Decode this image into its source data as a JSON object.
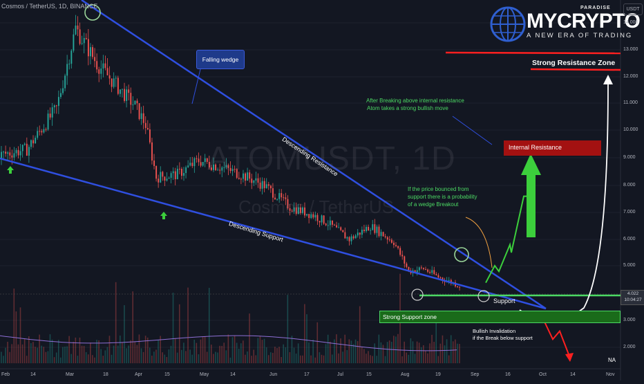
{
  "symbol_line": "Cosmos / TetherUS, 1D, BINANCE",
  "watermark": {
    "symbol": "ATOMUSDT, 1D",
    "name": "Cosmos / TetherUS"
  },
  "logo": {
    "brand": "MYCRYPTO",
    "sub": "PARADISE",
    "tagline": "A NEW ERA OF TRADING"
  },
  "currency_badge": "USDT",
  "price_label": {
    "price": "4.022",
    "countdown": "10:04:27"
  },
  "y_ticks": [
    "14.000",
    "13.000",
    "12.000",
    "11.000",
    "10.000",
    "9.000",
    "8.000",
    "7.000",
    "6.000",
    "5.000",
    "3.000",
    "2.000"
  ],
  "x_ticks": [
    "Feb",
    "14",
    "Mar",
    "18",
    "Apr",
    "15",
    "May",
    "14",
    "Jun",
    "17",
    "Jul",
    "15",
    "Aug",
    "19",
    "Sep",
    "16",
    "Oct",
    "14",
    "Nov"
  ],
  "annotations": {
    "falling_wedge": "Falling wedge",
    "descending_resistance": "Descending Resistance",
    "descending_support": "Descending Support",
    "break_note_1": "After Breaking above internal resistance",
    "break_note_2": "Atom takes a strong bullish move",
    "bounce_note_1": "If the price bounced from",
    "bounce_note_2": "support there is a probability",
    "bounce_note_3": "of a wedge Breakout",
    "internal_resistance": "Internal Resistance",
    "strong_resistance": "Strong Resistance Zone",
    "strong_support": "Strong Support zone",
    "support": "Support",
    "bullish_invalidation_1": "Bullish Invalidation",
    "bullish_invalidation_2": "if the Break below support",
    "na": "NA"
  },
  "colors": {
    "background": "#131722",
    "bull": "#26a69a",
    "bear": "#ef5350",
    "wedge_line": "#2f4fe0",
    "green_zone": "#1a6b1a",
    "red_zone": "#a31111",
    "highlight_green": "#4cd964"
  },
  "chart_data": {
    "type": "candlestick",
    "title": "ATOMUSDT, 1D",
    "instrument": "Cosmos / TetherUS",
    "exchange": "BINANCE",
    "ylim": [
      1.4,
      14.6
    ],
    "current_price": 4.022,
    "close_path": {
      "x": [
        "Feb 1",
        "Feb 14",
        "Feb 28",
        "Mar 8",
        "Mar 18",
        "Mar 28",
        "Apr 5",
        "Apr 10",
        "Apr 15",
        "Apr 25",
        "May 5",
        "May 14",
        "May 25",
        "Jun 5",
        "Jun 17",
        "Jun 28",
        "Jul 5",
        "Jul 15",
        "Jul 25",
        "Aug 5",
        "Aug 12",
        "Aug 19",
        "Aug 26",
        "Sep 5"
      ],
      "values": [
        9.1,
        9.3,
        10.8,
        13.8,
        12.5,
        11.6,
        10.9,
        10.2,
        8.3,
        8.4,
        8.9,
        8.7,
        8.4,
        8.0,
        7.2,
        6.9,
        6.6,
        6.0,
        6.5,
        5.9,
        4.8,
        4.9,
        4.6,
        4.3
      ]
    },
    "levels": {
      "strong_resistance": 12.8,
      "internal_resistance": [
        9.1,
        9.6
      ],
      "strong_support": [
        3.0,
        3.4
      ],
      "support": 4.0
    },
    "projection_up": [
      4.4,
      5.0,
      4.8,
      5.8,
      5.5,
      7.6,
      7.6,
      9.1
    ],
    "projection_down": [
      3.0,
      2.3,
      2.6,
      1.6
    ]
  }
}
